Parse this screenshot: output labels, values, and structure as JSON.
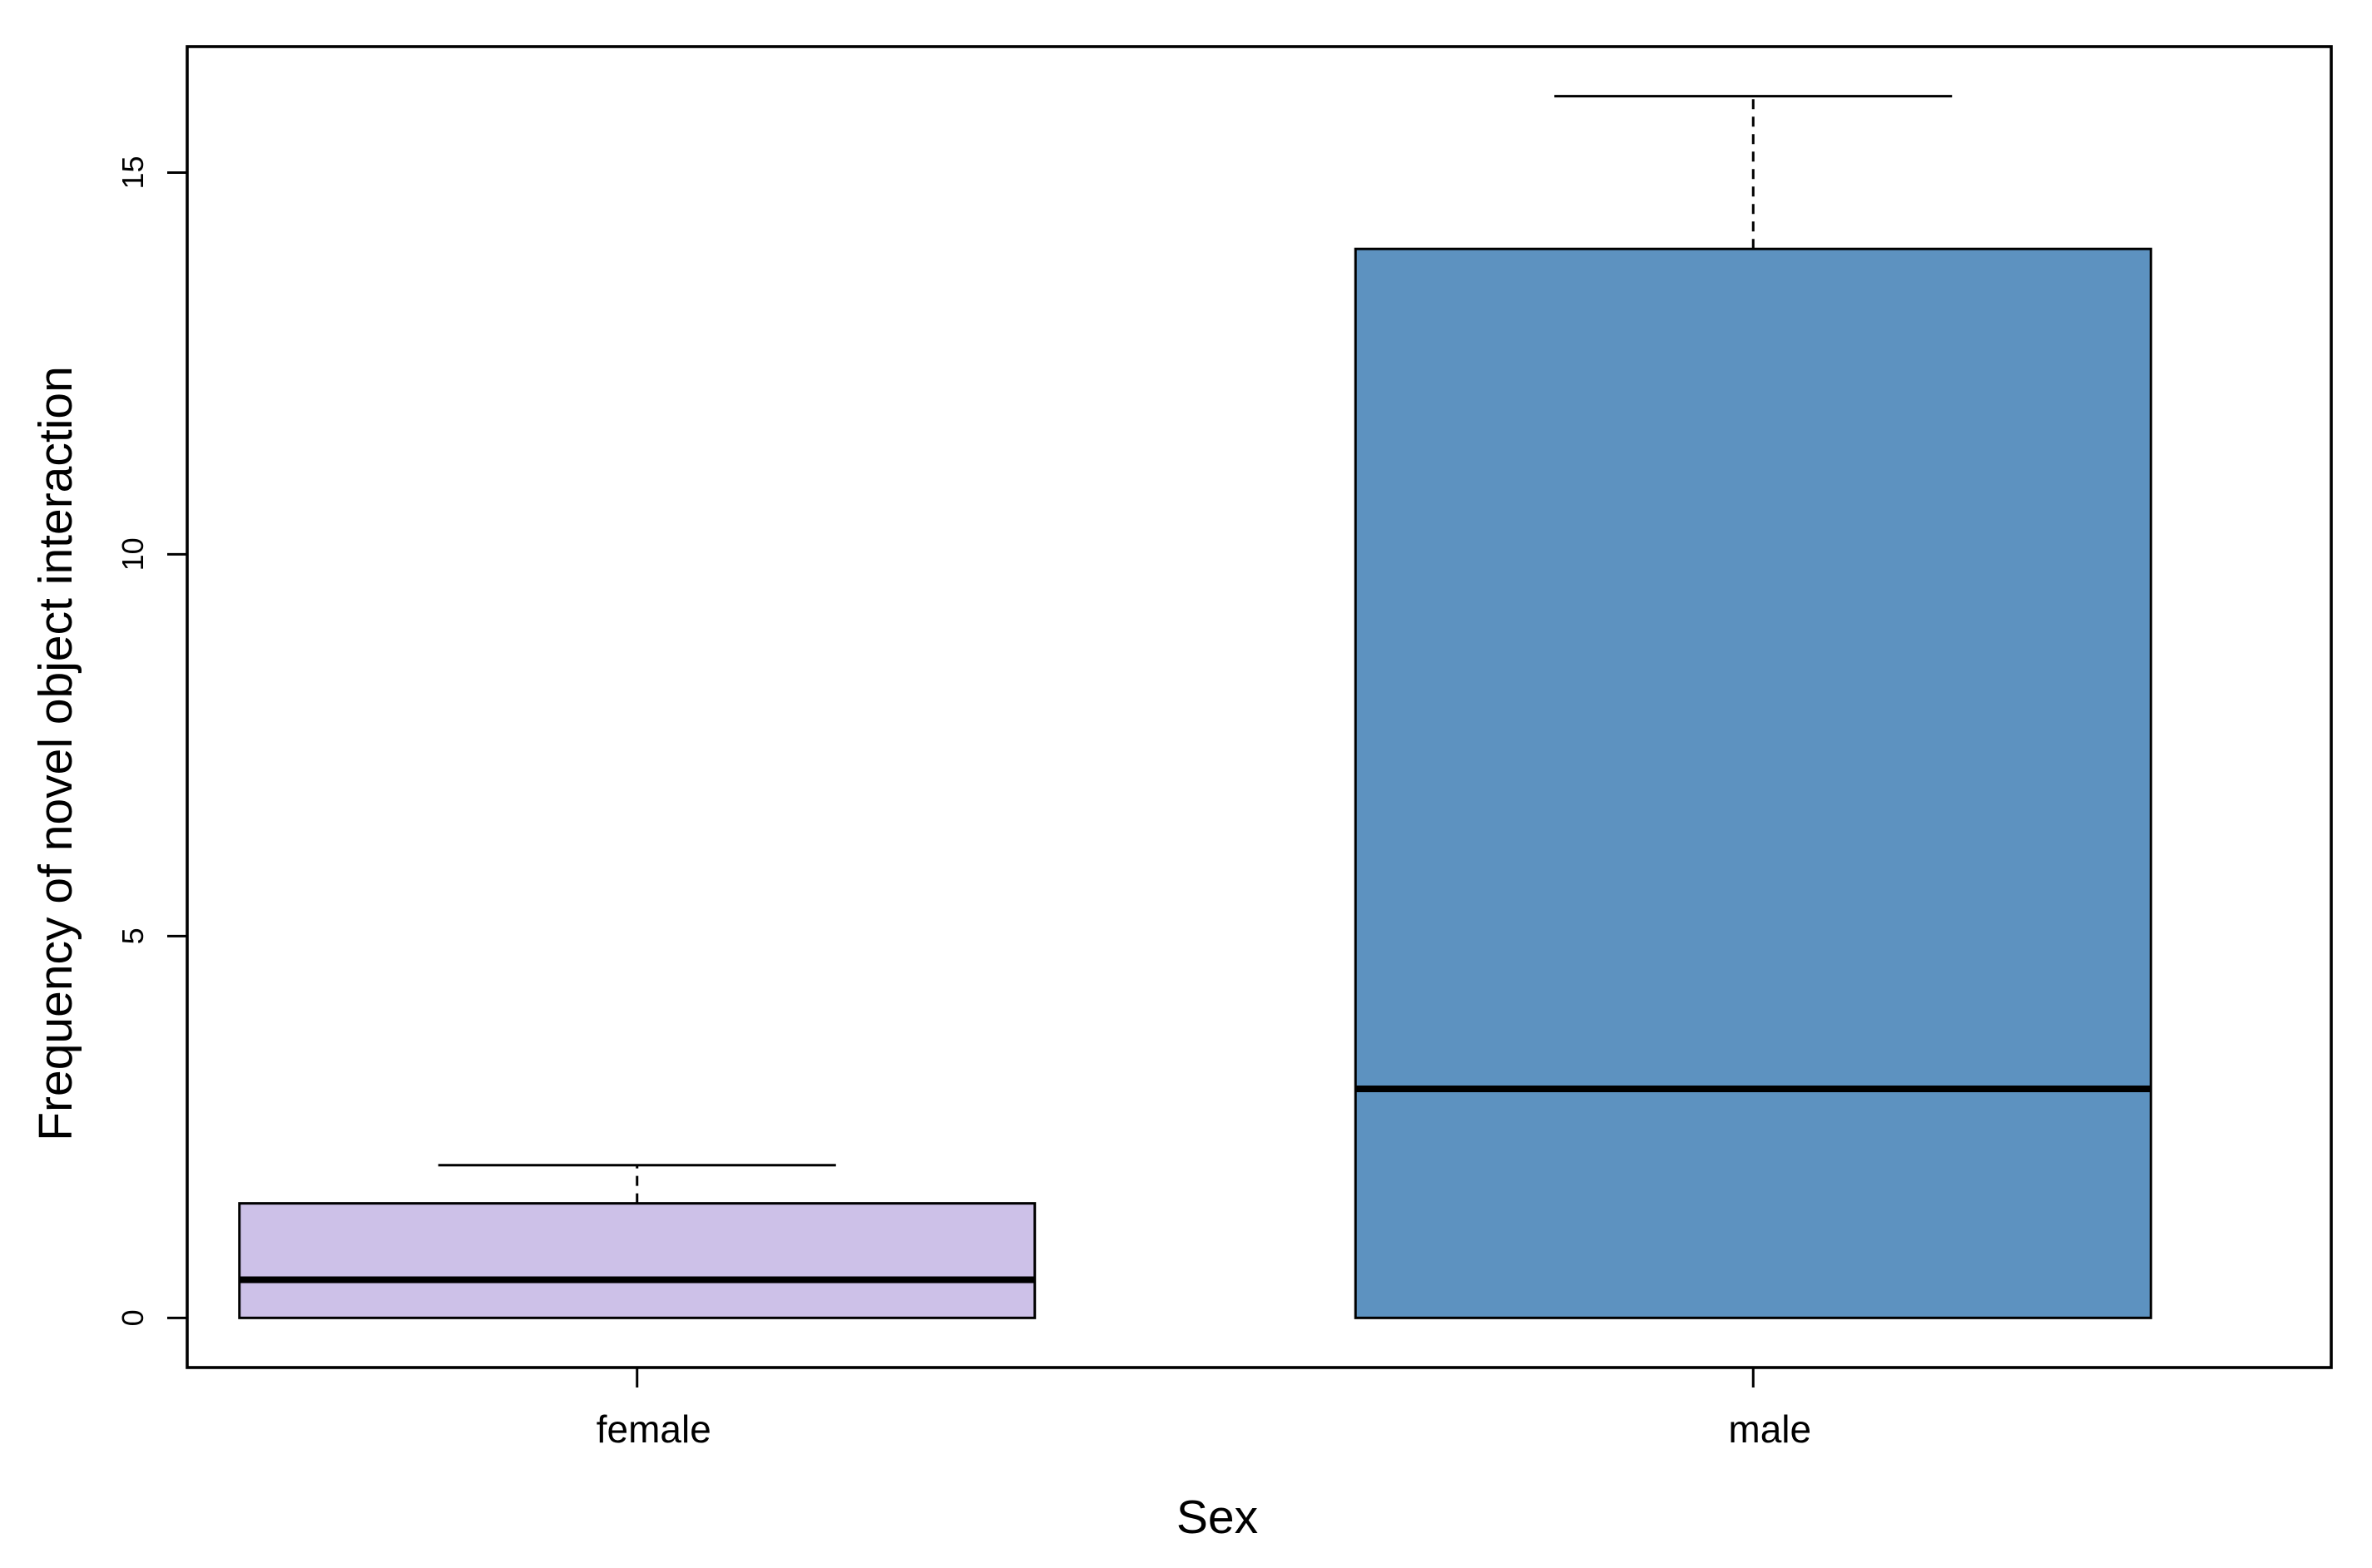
{
  "chart_data": {
    "type": "box",
    "xlabel": "Sex",
    "ylabel": "Frequency of novel object interaction",
    "ylim": [
      -0.65,
      16.65
    ],
    "y_ticks": [
      0,
      5,
      10,
      15
    ],
    "categories": [
      "female",
      "male"
    ],
    "boxes": [
      {
        "name": "female",
        "whisker_low": 0,
        "q1": 0,
        "median": 0.5,
        "q3": 1.5,
        "whisker_high": 2,
        "fill": "#cdc1e8"
      },
      {
        "name": "male",
        "whisker_low": 0,
        "q1": 0,
        "median": 3,
        "q3": 14,
        "whisker_high": 16,
        "fill": "#5d92c0"
      }
    ],
    "grid": false,
    "legend": "none"
  }
}
